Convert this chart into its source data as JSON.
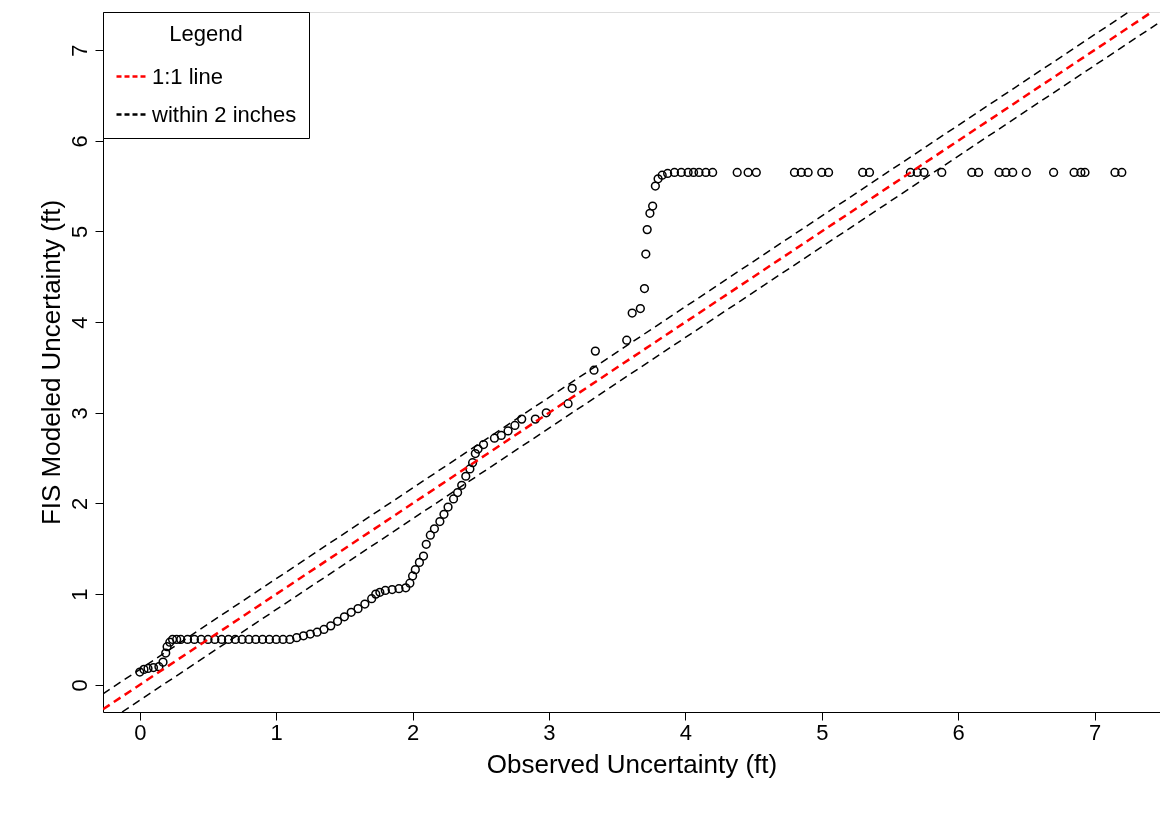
{
  "chart_data": {
    "type": "scatter",
    "xlabel": "Observed Uncertainty (ft)",
    "ylabel": "FIS Modeled Uncertainty (ft)",
    "legend_title": "Legend",
    "xlim": [
      -0.27,
      7.48
    ],
    "ylim": [
      -0.3,
      7.42
    ],
    "xticks": [
      0,
      1,
      2,
      3,
      4,
      5,
      6,
      7
    ],
    "yticks": [
      0,
      1,
      2,
      3,
      4,
      5,
      6,
      7
    ],
    "grid": false,
    "legend": "top left",
    "series": [
      {
        "marker": "circle",
        "color": "#000000",
        "x": [
          0,
          0.03,
          0.06,
          0.1,
          0.14,
          0.17,
          0.19,
          0.2,
          0.22,
          0.24,
          0.27,
          0.3,
          0.35,
          0.4,
          0.45,
          0.5,
          0.55,
          0.6,
          0.65,
          0.7,
          0.75,
          0.8,
          0.85,
          0.9,
          0.95,
          1.0,
          1.05,
          1.1,
          1.15,
          1.2,
          1.25,
          1.3,
          1.35,
          1.4,
          1.45,
          1.5,
          1.55,
          1.6,
          1.65,
          1.7,
          1.73,
          1.76,
          1.8,
          1.85,
          1.9,
          1.95,
          1.98,
          2.0,
          2.02,
          2.05,
          2.08,
          2.1,
          2.13,
          2.16,
          2.2,
          2.23,
          2.26,
          2.3,
          2.33,
          2.36,
          2.39,
          2.42,
          2.44,
          2.46,
          2.48,
          2.52,
          2.6,
          2.65,
          2.7,
          2.75,
          2.8,
          2.9,
          2.98,
          3.14,
          3.17,
          3.33,
          3.34,
          3.57,
          3.61,
          3.67,
          3.7,
          3.71,
          3.72,
          3.74,
          3.76,
          3.78,
          3.8,
          3.83,
          3.87,
          3.92,
          3.97,
          4.02,
          4.06,
          4.1,
          4.15,
          4.2,
          4.38,
          4.46,
          4.52,
          4.8,
          4.85,
          4.9,
          5.0,
          5.05,
          5.3,
          5.35,
          5.65,
          5.7,
          5.75,
          5.88,
          6.1,
          6.15,
          6.3,
          6.35,
          6.4,
          6.5,
          6.7,
          6.85,
          6.9,
          6.93,
          7.15,
          7.2
        ],
        "values": [
          0.14,
          0.17,
          0.18,
          0.19,
          0.2,
          0.25,
          0.35,
          0.42,
          0.47,
          0.5,
          0.5,
          0.5,
          0.5,
          0.5,
          0.5,
          0.5,
          0.5,
          0.5,
          0.5,
          0.5,
          0.5,
          0.5,
          0.5,
          0.5,
          0.5,
          0.5,
          0.5,
          0.5,
          0.52,
          0.54,
          0.56,
          0.58,
          0.61,
          0.65,
          0.7,
          0.75,
          0.8,
          0.84,
          0.89,
          0.95,
          1.0,
          1.02,
          1.04,
          1.05,
          1.06,
          1.07,
          1.12,
          1.2,
          1.27,
          1.35,
          1.42,
          1.55,
          1.65,
          1.72,
          1.8,
          1.88,
          1.96,
          2.05,
          2.12,
          2.2,
          2.3,
          2.38,
          2.45,
          2.55,
          2.6,
          2.65,
          2.72,
          2.75,
          2.8,
          2.86,
          2.93,
          2.93,
          3.0,
          3.1,
          3.27,
          3.47,
          3.68,
          3.8,
          4.1,
          4.15,
          4.37,
          4.75,
          5.02,
          5.2,
          5.28,
          5.5,
          5.58,
          5.62,
          5.64,
          5.65,
          5.65,
          5.65,
          5.65,
          5.65,
          5.65,
          5.65,
          5.65,
          5.65,
          5.65,
          5.65,
          5.65,
          5.65,
          5.65,
          5.65,
          5.65,
          5.65,
          5.65,
          5.65,
          5.65,
          5.65,
          5.65,
          5.65,
          5.65,
          5.65,
          5.65,
          5.65,
          5.65,
          5.65,
          5.65,
          5.65,
          5.65,
          5.65
        ]
      },
      {
        "type": "line",
        "name": "1:1 line",
        "color": "#ff0000",
        "line_style": "dashed",
        "x": [
          -0.27,
          7.42
        ],
        "values": [
          -0.27,
          7.42
        ]
      },
      {
        "type": "line",
        "name": "within 2 inches",
        "color": "#000000",
        "line_style": "dashed",
        "x": [
          -0.27,
          7.25
        ],
        "values": [
          -0.1,
          7.42
        ]
      },
      {
        "type": "line",
        "color": "#000000",
        "line_style": "dashed",
        "x": [
          -0.13,
          7.48
        ],
        "values": [
          -0.3,
          7.31
        ]
      }
    ]
  }
}
